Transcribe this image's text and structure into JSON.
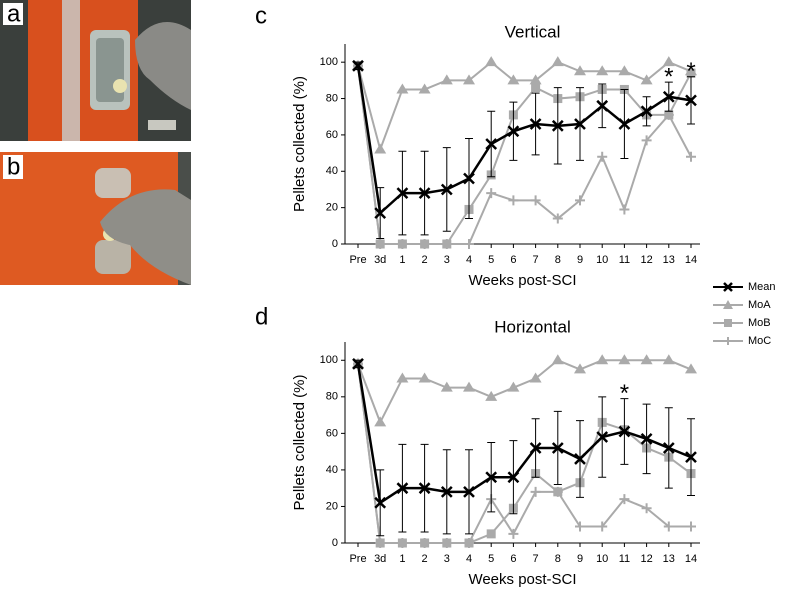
{
  "photos": [
    {
      "label": "a"
    },
    {
      "label": "b"
    }
  ],
  "chart_data": [
    {
      "type": "line",
      "panel": "c",
      "title": "Vertical",
      "x_label": "Weeks post-SCI",
      "y_label": "Pellets collected (%)",
      "categories": [
        "Pre",
        "3d",
        "1",
        "2",
        "3",
        "4",
        "5",
        "6",
        "7",
        "8",
        "9",
        "10",
        "11",
        "12",
        "13",
        "14"
      ],
      "ylim": [
        0,
        110
      ],
      "yticks": [
        0,
        20,
        40,
        60,
        80,
        100
      ],
      "series": [
        {
          "name": "Mean",
          "color": "#000000",
          "marker": "x",
          "values": [
            98,
            17,
            28,
            28,
            30,
            36,
            55,
            62,
            66,
            65,
            66,
            76,
            66,
            73,
            81,
            79
          ],
          "errors": [
            2,
            14,
            23,
            23,
            23,
            22,
            18,
            16,
            17,
            21,
            20,
            12,
            19,
            8,
            8,
            13
          ]
        },
        {
          "name": "MoA",
          "color": "#aaaaaa",
          "marker": "triangle",
          "values": [
            98,
            52,
            85,
            85,
            90,
            90,
            100,
            90,
            90,
            100,
            95,
            95,
            95,
            90,
            100,
            95
          ]
        },
        {
          "name": "MoB",
          "color": "#aaaaaa",
          "marker": "square",
          "values": [
            98,
            0,
            0,
            0,
            0,
            19,
            38,
            71,
            86,
            80,
            81,
            85,
            85,
            71,
            71,
            94
          ]
        },
        {
          "name": "MoC",
          "color": "#aaaaaa",
          "marker": "plus",
          "values": [
            98,
            0,
            0,
            0,
            0,
            0,
            28,
            24,
            24,
            14,
            24,
            48,
            19,
            57,
            71,
            48
          ]
        }
      ],
      "annotations": [
        {
          "text": "*",
          "x": "13"
        },
        {
          "text": "*",
          "x": "14"
        }
      ]
    },
    {
      "type": "line",
      "panel": "d",
      "title": "Horizontal",
      "x_label": "Weeks post-SCI",
      "y_label": "Pellets collected (%)",
      "categories": [
        "Pre",
        "3d",
        "1",
        "2",
        "3",
        "4",
        "5",
        "6",
        "7",
        "8",
        "9",
        "10",
        "11",
        "12",
        "13",
        "14"
      ],
      "ylim": [
        0,
        110
      ],
      "yticks": [
        0,
        20,
        40,
        60,
        80,
        100
      ],
      "series": [
        {
          "name": "Mean",
          "color": "#000000",
          "marker": "x",
          "values": [
            98,
            22,
            30,
            30,
            28,
            28,
            36,
            36,
            52,
            52,
            46,
            58,
            61,
            57,
            52,
            47
          ],
          "errors": [
            2,
            18,
            24,
            24,
            23,
            23,
            19,
            20,
            16,
            20,
            21,
            22,
            18,
            19,
            22,
            21
          ]
        },
        {
          "name": "MoA",
          "color": "#aaaaaa",
          "marker": "triangle",
          "values": [
            98,
            66,
            90,
            90,
            85,
            85,
            80,
            85,
            90,
            100,
            95,
            100,
            100,
            100,
            100,
            95
          ]
        },
        {
          "name": "MoB",
          "color": "#aaaaaa",
          "marker": "square",
          "values": [
            98,
            0,
            0,
            0,
            0,
            0,
            5,
            19,
            38,
            28,
            33,
            66,
            62,
            52,
            47,
            38
          ]
        },
        {
          "name": "MoC",
          "color": "#aaaaaa",
          "marker": "plus",
          "values": [
            98,
            0,
            0,
            0,
            0,
            0,
            24,
            5,
            28,
            28,
            9,
            9,
            24,
            19,
            9,
            9
          ]
        }
      ],
      "annotations": [
        {
          "text": "*",
          "x": "11"
        }
      ]
    }
  ]
}
